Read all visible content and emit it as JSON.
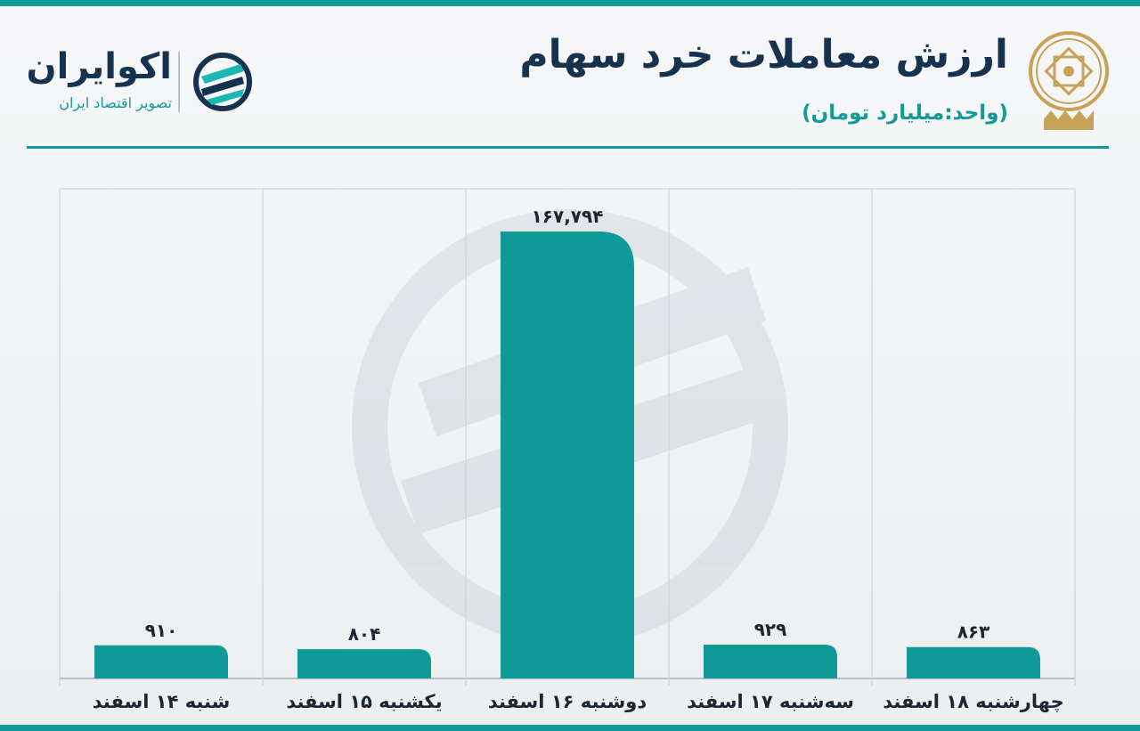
{
  "header": {
    "title": "ارزش معاملات خرد سهام",
    "subtitle": "(واحد:میلیارد تومان)"
  },
  "brand": {
    "name": "اکوایران",
    "tagline": "تصویر اقتصاد ایران"
  },
  "colors": {
    "accent": "#0f9a98",
    "title": "#16324f",
    "bar": "#0f9a98",
    "grid": "#c9cdd1",
    "emblem": "#c9a25a"
  },
  "chart_data": {
    "type": "bar",
    "categories": [
      "شنبه ۱۴ اسفند",
      "یکشنبه ۱۵ اسفند",
      "دوشنبه ۱۶ اسفند",
      "سه‌شنبه ۱۷ اسفند",
      "چهارشنبه ۱۸ اسفند"
    ],
    "values": [
      910,
      804,
      167794,
      929,
      863
    ],
    "value_labels": [
      "۹۱۰",
      "۸۰۴",
      "۱۶۷,۷۹۴",
      "۹۲۹",
      "۸۶۳"
    ],
    "title": "ارزش معاملات خرد سهام",
    "xlabel": "",
    "ylabel": "",
    "y_scale": "broken",
    "grid": "vertical separators",
    "legend": "none"
  }
}
